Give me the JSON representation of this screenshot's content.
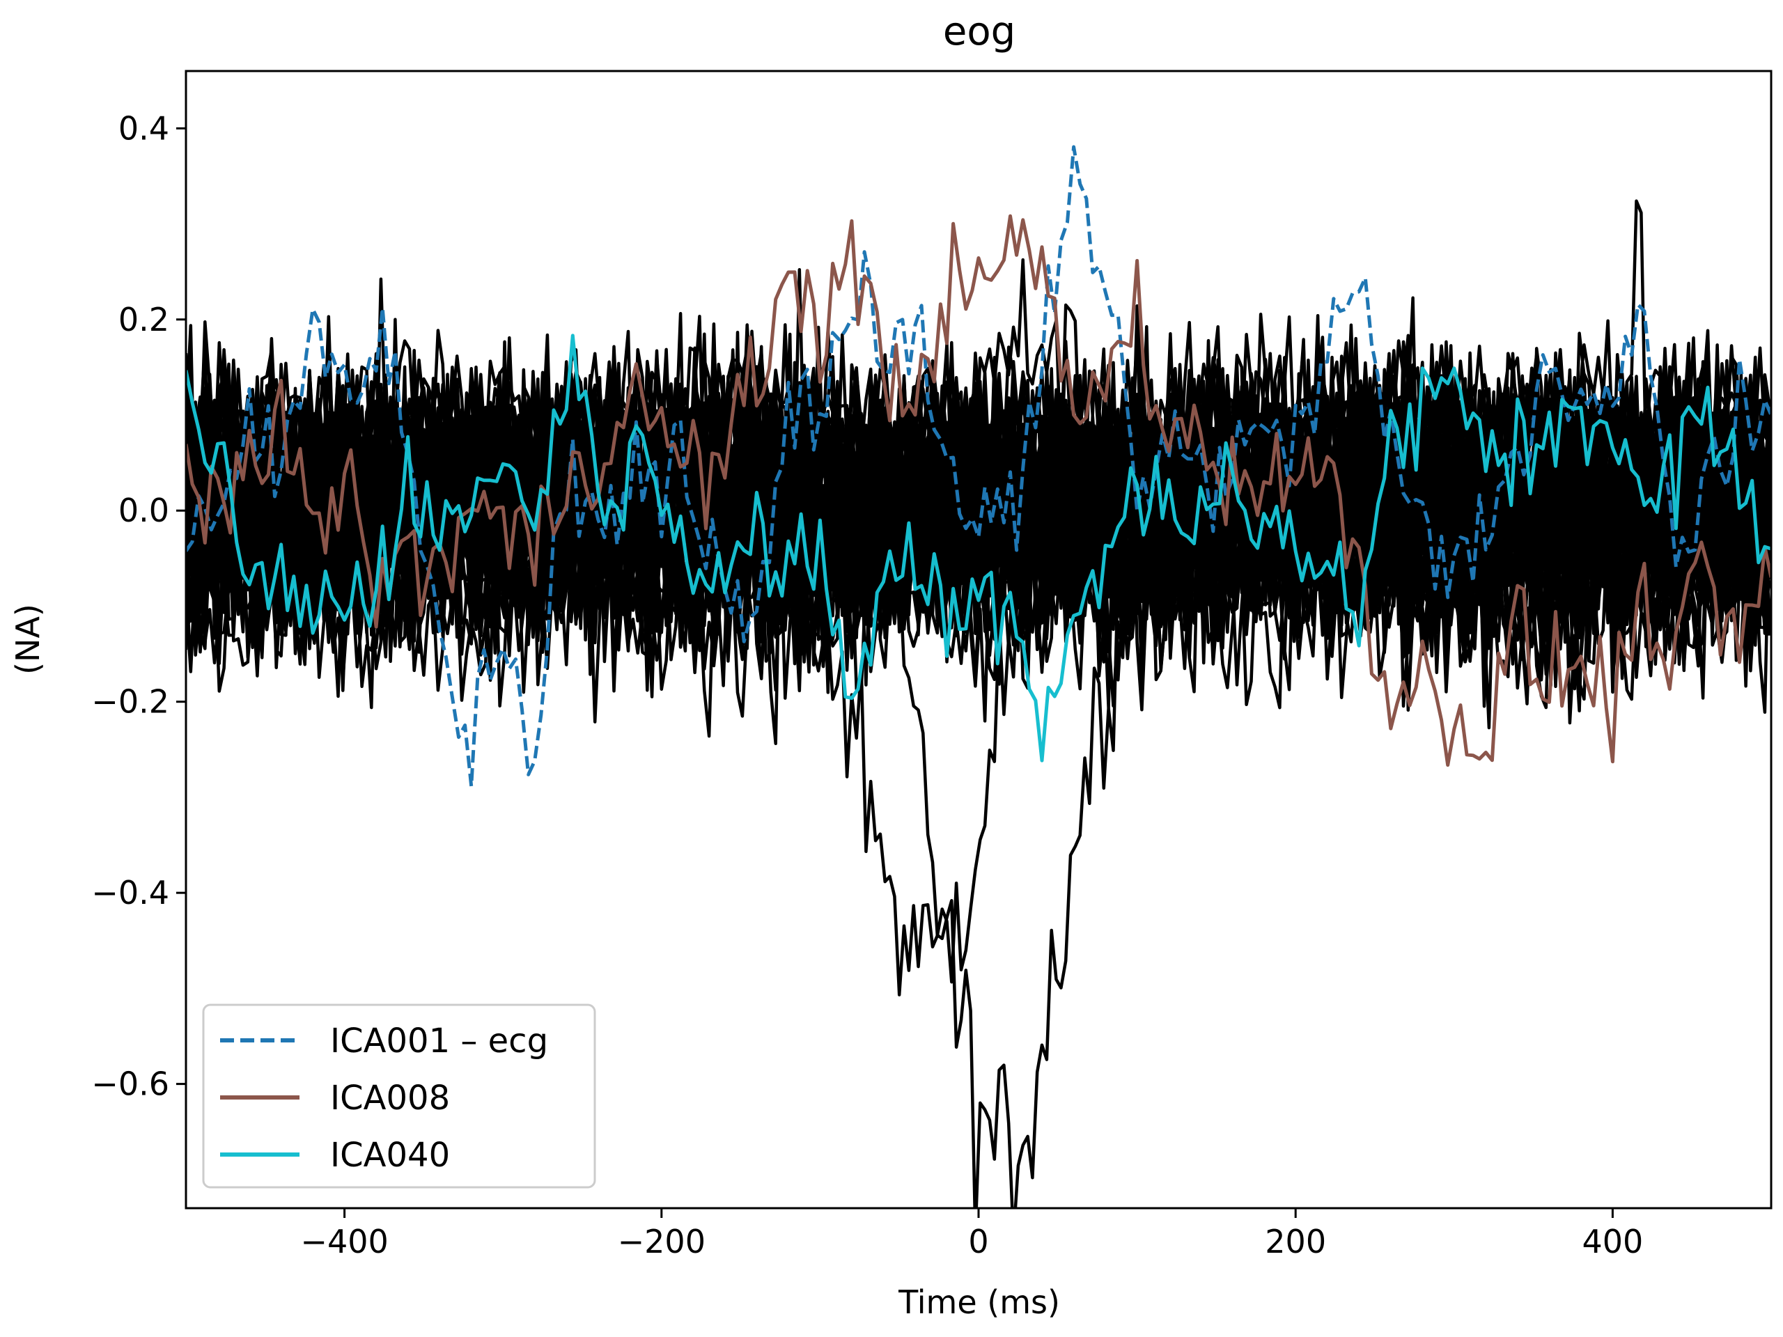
{
  "chart_data": {
    "type": "line",
    "title": "eog",
    "xlabel": "Time (ms)",
    "ylabel": "(NA)",
    "xlim": [
      -500,
      500
    ],
    "ylim": [
      -0.73,
      0.46
    ],
    "x_ticks": [
      -400,
      -200,
      0,
      200,
      400
    ],
    "x_tick_labels": [
      "−400",
      "−200",
      "0",
      "200",
      "400"
    ],
    "y_ticks": [
      0.4,
      0.2,
      0.0,
      -0.2,
      -0.4,
      -0.6
    ],
    "y_tick_labels": [
      "0.4",
      "0.2",
      "0.0",
      "−0.2",
      "−0.4",
      "−0.6"
    ],
    "grid": false,
    "legend_position": "lower-left",
    "background_series": {
      "description_color": "#000000",
      "count": 48,
      "typical_range": [
        -0.2,
        0.2
      ],
      "peak": {
        "x": 416,
        "y": 0.41
      },
      "trough": {
        "x": 14,
        "y": -0.67
      }
    },
    "series": [
      {
        "name": "ICA001 – ecg",
        "color": "#1f77b4",
        "style": "dashed",
        "x": [
          -500,
          -480,
          -460,
          -440,
          -420,
          -400,
          -380,
          -360,
          -340,
          -320,
          -300,
          -280,
          -260,
          -240,
          -220,
          -200,
          -180,
          -160,
          -140,
          -120,
          -100,
          -80,
          -60,
          -40,
          -20,
          0,
          20,
          40,
          60,
          80,
          100,
          120,
          140,
          160,
          180,
          200,
          220,
          240,
          260,
          280,
          300,
          320,
          340,
          360,
          380,
          400,
          420,
          440,
          460,
          480,
          500
        ],
        "values": [
          -0.05,
          -0.02,
          0.1,
          0.03,
          0.2,
          0.15,
          0.17,
          0.1,
          -0.15,
          -0.24,
          -0.12,
          -0.26,
          0.02,
          -0.01,
          0.03,
          0.05,
          0.02,
          -0.1,
          -0.12,
          0.1,
          0.12,
          0.22,
          0.16,
          0.22,
          0.05,
          -0.02,
          -0.01,
          0.15,
          0.34,
          0.24,
          0.02,
          0.08,
          0.03,
          0.06,
          0.07,
          0.08,
          0.15,
          0.25,
          0.06,
          -0.03,
          -0.06,
          -0.02,
          0.08,
          0.14,
          0.12,
          0.1,
          0.2,
          -0.06,
          0.05,
          0.09,
          0.1
        ]
      },
      {
        "name": "ICA008",
        "color": "#8c564b",
        "style": "solid",
        "x": [
          -500,
          -480,
          -460,
          -440,
          -420,
          -400,
          -380,
          -360,
          -340,
          -320,
          -300,
          -280,
          -260,
          -240,
          -220,
          -200,
          -180,
          -160,
          -140,
          -120,
          -100,
          -80,
          -60,
          -40,
          -20,
          0,
          20,
          40,
          60,
          80,
          100,
          120,
          140,
          160,
          180,
          200,
          220,
          240,
          260,
          280,
          300,
          320,
          340,
          360,
          380,
          400,
          420,
          440,
          460,
          480,
          500
        ],
        "values": [
          -0.01,
          0.0,
          0.07,
          0.1,
          -0.03,
          0.03,
          -0.08,
          -0.05,
          -0.06,
          0.01,
          -0.02,
          -0.04,
          0.04,
          0.06,
          0.12,
          0.08,
          0.04,
          0.06,
          0.13,
          0.25,
          0.2,
          0.26,
          0.15,
          0.12,
          0.24,
          0.21,
          0.29,
          0.25,
          0.1,
          0.13,
          0.21,
          0.07,
          0.08,
          0.03,
          0.05,
          0.02,
          0.05,
          -0.05,
          -0.2,
          -0.18,
          -0.2,
          -0.25,
          -0.12,
          -0.18,
          -0.16,
          -0.2,
          -0.1,
          -0.15,
          -0.08,
          -0.14,
          -0.07
        ]
      },
      {
        "name": "ICA040",
        "color": "#17becf",
        "style": "solid",
        "x": [
          -500,
          -480,
          -460,
          -440,
          -420,
          -400,
          -380,
          -360,
          -340,
          -320,
          -300,
          -280,
          -260,
          -240,
          -220,
          -200,
          -180,
          -160,
          -140,
          -120,
          -100,
          -80,
          -60,
          -40,
          -20,
          0,
          20,
          40,
          60,
          80,
          100,
          120,
          140,
          160,
          180,
          200,
          220,
          240,
          260,
          280,
          300,
          320,
          340,
          360,
          380,
          400,
          420,
          440,
          460,
          480,
          500
        ],
        "values": [
          0.11,
          0.06,
          -0.09,
          -0.06,
          -0.12,
          -0.08,
          -0.08,
          0.05,
          -0.04,
          0.02,
          0.06,
          -0.03,
          0.18,
          0.02,
          0.05,
          0.04,
          -0.04,
          -0.05,
          -0.02,
          -0.09,
          -0.06,
          -0.2,
          -0.07,
          -0.05,
          -0.12,
          -0.09,
          -0.1,
          -0.22,
          -0.11,
          -0.04,
          0.03,
          -0.01,
          -0.02,
          0.06,
          -0.01,
          -0.02,
          -0.08,
          -0.1,
          0.07,
          0.1,
          0.12,
          0.07,
          0.05,
          0.09,
          0.12,
          0.08,
          -0.01,
          0.05,
          0.1,
          0.02,
          -0.04
        ]
      }
    ]
  }
}
